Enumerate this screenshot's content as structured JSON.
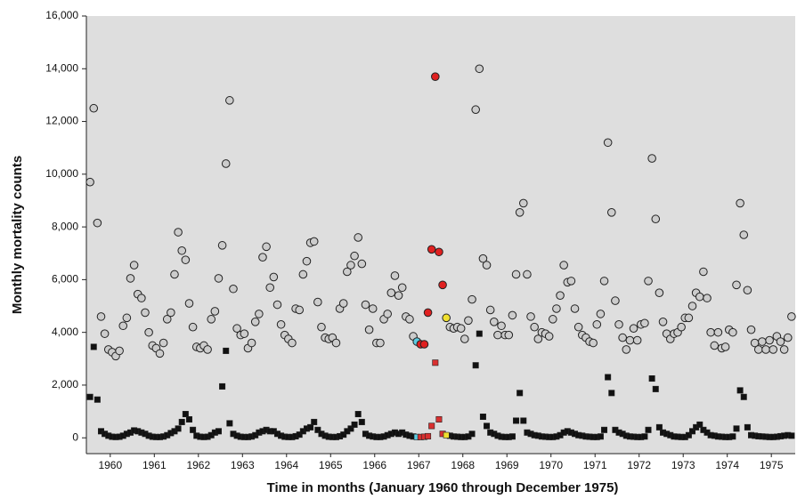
{
  "chart_data": {
    "type": "scatter",
    "x_label": "Time in months (January 1960 through December 1975)",
    "y_label": "Monthly mortality counts",
    "xlim": [
      0,
      193
    ],
    "xticks": [
      {
        "value": 6.5,
        "label": "1960"
      },
      {
        "value": 18.5,
        "label": "1961"
      },
      {
        "value": 30.5,
        "label": "1962"
      },
      {
        "value": 42.5,
        "label": "1963"
      },
      {
        "value": 54.5,
        "label": "1964"
      },
      {
        "value": 66.5,
        "label": "1965"
      },
      {
        "value": 78.5,
        "label": "1966"
      },
      {
        "value": 90.5,
        "label": "1967"
      },
      {
        "value": 102.5,
        "label": "1968"
      },
      {
        "value": 114.5,
        "label": "1969"
      },
      {
        "value": 126.5,
        "label": "1970"
      },
      {
        "value": 138.5,
        "label": "1971"
      },
      {
        "value": 150.5,
        "label": "1972"
      },
      {
        "value": 162.5,
        "label": "1973"
      },
      {
        "value": 174.5,
        "label": "1974"
      },
      {
        "value": 186.5,
        "label": "1975"
      }
    ],
    "ylim": [
      -600,
      16000
    ],
    "yticks": [
      0,
      {
        "value": 2000,
        "label": "2,000"
      },
      {
        "value": 4000,
        "label": "4,000"
      },
      {
        "value": 6000,
        "label": "6,000"
      },
      {
        "value": 8000,
        "label": "8,000"
      },
      {
        "value": 10000,
        "label": "10,000"
      },
      {
        "value": 12000,
        "label": "12,000"
      },
      {
        "value": 14000,
        "label": "14,000"
      },
      {
        "value": 16000,
        "label": "16,000"
      }
    ],
    "grid": false,
    "series": [
      {
        "marker": "square",
        "color": "#111111",
        "x": [
          1,
          2,
          3,
          4,
          5,
          6,
          7,
          8,
          9,
          10,
          11,
          12,
          13,
          14,
          15,
          16,
          17,
          18,
          19,
          20,
          21,
          22,
          23,
          24,
          25,
          26,
          27,
          28,
          29,
          30,
          31,
          32,
          33,
          34,
          35,
          36,
          37,
          38,
          39,
          40,
          41,
          42,
          43,
          44,
          45,
          46,
          47,
          48,
          49,
          50,
          51,
          52,
          53,
          54,
          55,
          56,
          57,
          58,
          59,
          60,
          61,
          62,
          63,
          64,
          65,
          66,
          67,
          68,
          69,
          70,
          71,
          72,
          73,
          74,
          75,
          76,
          77,
          78,
          79,
          80,
          81,
          82,
          83,
          84,
          85,
          86,
          87,
          88,
          89,
          99,
          100,
          101,
          102,
          103,
          104,
          105,
          106,
          107,
          108,
          109,
          110,
          111,
          112,
          113,
          114,
          115,
          116,
          117,
          118,
          119,
          120,
          121,
          122,
          123,
          124,
          125,
          126,
          127,
          128,
          129,
          130,
          131,
          132,
          133,
          134,
          135,
          136,
          137,
          138,
          139,
          140,
          141,
          142,
          143,
          144,
          145,
          146,
          147,
          148,
          149,
          150,
          151,
          152,
          153,
          154,
          155,
          156,
          157,
          158,
          159,
          160,
          161,
          162,
          163,
          164,
          165,
          166,
          167,
          168,
          169,
          170,
          171,
          172,
          173,
          174,
          175,
          176,
          177,
          178,
          179,
          180,
          181,
          182,
          183,
          184,
          185,
          186,
          187,
          188,
          189,
          190,
          191,
          192
        ],
        "values": [
          1550,
          3450,
          1450,
          250,
          150,
          80,
          40,
          30,
          40,
          80,
          150,
          200,
          280,
          250,
          200,
          150,
          80,
          40,
          30,
          30,
          50,
          100,
          180,
          250,
          350,
          600,
          900,
          700,
          300,
          80,
          40,
          30,
          40,
          100,
          200,
          250,
          1950,
          3300,
          550,
          150,
          80,
          40,
          30,
          30,
          50,
          100,
          200,
          250,
          300,
          250,
          250,
          150,
          80,
          40,
          30,
          30,
          60,
          120,
          250,
          350,
          400,
          600,
          300,
          150,
          80,
          40,
          30,
          30,
          60,
          120,
          250,
          350,
          500,
          900,
          600,
          150,
          80,
          50,
          30,
          30,
          50,
          100,
          150,
          200,
          150,
          200,
          120,
          80,
          50,
          80,
          50,
          40,
          30,
          30,
          50,
          150,
          2750,
          3950,
          800,
          450,
          200,
          150,
          80,
          40,
          30,
          30,
          50,
          650,
          1700,
          650,
          200,
          150,
          100,
          80,
          50,
          40,
          30,
          30,
          50,
          100,
          200,
          250,
          200,
          150,
          100,
          80,
          50,
          40,
          30,
          30,
          50,
          300,
          2300,
          1700,
          300,
          200,
          150,
          80,
          50,
          40,
          30,
          30,
          50,
          300,
          2250,
          1850,
          400,
          200,
          150,
          100,
          50,
          40,
          30,
          30,
          100,
          250,
          400,
          500,
          300,
          200,
          100,
          80,
          50,
          40,
          30,
          30,
          50,
          350,
          1800,
          1550,
          400,
          100,
          80,
          60,
          50,
          40,
          30,
          30,
          40,
          60,
          80,
          100,
          80
        ]
      },
      {
        "marker": "square",
        "color": "#5ecbe0",
        "x": [
          90
        ],
        "values": [
          30
        ]
      },
      {
        "marker": "square",
        "color": "#d83030",
        "x": [
          91,
          92,
          93,
          94,
          95,
          96,
          97
        ],
        "values": [
          30,
          40,
          60,
          450,
          2850,
          700,
          150
        ]
      },
      {
        "marker": "square",
        "color": "#f0e030",
        "x": [
          98
        ],
        "values": [
          100
        ]
      },
      {
        "marker": "circle",
        "color": "#cccccc",
        "x": [
          1,
          2,
          3,
          4,
          5,
          6,
          7,
          8,
          9,
          10,
          11,
          12,
          13,
          14,
          15,
          16,
          17,
          18,
          19,
          20,
          21,
          22,
          23,
          24,
          25,
          26,
          27,
          28,
          29,
          30,
          31,
          32,
          33,
          34,
          35,
          36,
          37,
          38,
          39,
          40,
          41,
          42,
          43,
          44,
          45,
          46,
          47,
          48,
          49,
          50,
          51,
          52,
          53,
          54,
          55,
          56,
          57,
          58,
          59,
          60,
          61,
          62,
          63,
          64,
          65,
          66,
          67,
          68,
          69,
          70,
          71,
          72,
          73,
          74,
          75,
          76,
          77,
          78,
          79,
          80,
          81,
          82,
          83,
          84,
          85,
          86,
          87,
          88,
          89,
          99,
          100,
          101,
          102,
          103,
          104,
          105,
          106,
          107,
          108,
          109,
          110,
          111,
          112,
          113,
          114,
          115,
          116,
          117,
          118,
          119,
          120,
          121,
          122,
          123,
          124,
          125,
          126,
          127,
          128,
          129,
          130,
          131,
          132,
          133,
          134,
          135,
          136,
          137,
          138,
          139,
          140,
          141,
          142,
          143,
          144,
          145,
          146,
          147,
          148,
          149,
          150,
          151,
          152,
          153,
          154,
          155,
          156,
          157,
          158,
          159,
          160,
          161,
          162,
          163,
          164,
          165,
          166,
          167,
          168,
          169,
          170,
          171,
          172,
          173,
          174,
          175,
          176,
          177,
          178,
          179,
          180,
          181,
          182,
          183,
          184,
          185,
          186,
          187,
          188,
          189,
          190,
          191,
          192
        ],
        "values": [
          9700,
          12500,
          8150,
          4600,
          3950,
          3350,
          3250,
          3100,
          3300,
          4250,
          4550,
          6050,
          6550,
          5450,
          5300,
          4750,
          4000,
          3500,
          3400,
          3200,
          3600,
          4500,
          4750,
          6200,
          7800,
          7100,
          6750,
          5100,
          4200,
          3450,
          3400,
          3500,
          3350,
          4500,
          4800,
          6050,
          7300,
          10400,
          12800,
          5650,
          4150,
          3900,
          3950,
          3400,
          3600,
          4400,
          4700,
          6850,
          7250,
          5700,
          6100,
          5050,
          4300,
          3900,
          3750,
          3600,
          4900,
          4850,
          6200,
          6700,
          7400,
          7450,
          5150,
          4200,
          3800,
          3750,
          3800,
          3600,
          4900,
          5100,
          6300,
          6550,
          6900,
          7600,
          6600,
          5050,
          4100,
          4900,
          3600,
          3600,
          4500,
          4700,
          5500,
          6150,
          5400,
          5700,
          4600,
          4500,
          3850,
          4200,
          4150,
          4200,
          4150,
          3750,
          4450,
          5250,
          12450,
          14000,
          6800,
          6550,
          4850,
          4400,
          3900,
          4250,
          3900,
          3900,
          4650,
          6200,
          8550,
          8900,
          6200,
          4600,
          4200,
          3750,
          4000,
          3950,
          3850,
          4500,
          4900,
          5400,
          6550,
          5900,
          5950,
          4900,
          4200,
          3900,
          3800,
          3650,
          3600,
          4300,
          4700,
          5950,
          11200,
          8550,
          5200,
          4300,
          3800,
          3350,
          3700,
          4150,
          3700,
          4300,
          4350,
          5950,
          10600,
          8300,
          5500,
          4400,
          3950,
          3750,
          3950,
          4000,
          4200,
          4550,
          4550,
          5000,
          5500,
          5350,
          6300,
          5300,
          4000,
          3500,
          4000,
          3400,
          3450,
          4100,
          4000,
          5800,
          8900,
          7700,
          5600,
          4100,
          3600,
          3350,
          3650,
          3350,
          3700,
          3350,
          3850,
          3650,
          3350,
          3800,
          4600
        ]
      },
      {
        "marker": "circle",
        "color": "#5ecbe0",
        "x": [
          90
        ],
        "values": [
          3650
        ]
      },
      {
        "marker": "circle",
        "color": "#e02020",
        "x": [
          91,
          92,
          93,
          94,
          95,
          96,
          97
        ],
        "values": [
          3550,
          3550,
          4750,
          7150,
          13700,
          7050,
          5800
        ]
      },
      {
        "marker": "circle",
        "color": "#f0e030",
        "x": [
          98
        ],
        "values": [
          4550
        ]
      }
    ]
  }
}
